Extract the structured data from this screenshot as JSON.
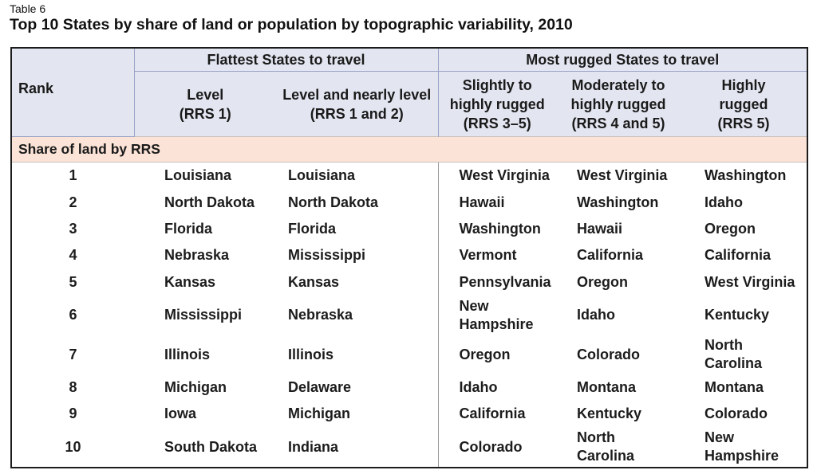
{
  "table_label": "Table 6",
  "title": "Top 10 States by share of land or population by topographic variability, 2010",
  "header": {
    "rank": "Rank",
    "flattest_group": "Flattest States to travel",
    "rugged_group": "Most rugged States to travel",
    "columns": [
      {
        "line1": "Level",
        "line2": "(RRS 1)",
        "line3": ""
      },
      {
        "line1": "Level and nearly level",
        "line2": "(RRS 1 and 2)",
        "line3": ""
      },
      {
        "line1": "Slightly to",
        "line2": "highly rugged",
        "line3": "(RRS 3–5)"
      },
      {
        "line1": "Moderately to",
        "line2": "highly rugged",
        "line3": "(RRS 4 and 5)"
      },
      {
        "line1": "Highly",
        "line2": "rugged",
        "line3": "(RRS 5)"
      }
    ]
  },
  "section": "Share of land by RRS",
  "rows": [
    {
      "rank": "1",
      "cells": [
        [
          "Louisiana"
        ],
        [
          "Louisiana"
        ],
        [
          "West Virginia"
        ],
        [
          "West Virginia"
        ],
        [
          "Washington"
        ]
      ]
    },
    {
      "rank": "2",
      "cells": [
        [
          "North Dakota"
        ],
        [
          "North Dakota"
        ],
        [
          "Hawaii"
        ],
        [
          "Washington"
        ],
        [
          "Idaho"
        ]
      ]
    },
    {
      "rank": "3",
      "cells": [
        [
          "Florida"
        ],
        [
          "Florida"
        ],
        [
          "Washington"
        ],
        [
          "Hawaii"
        ],
        [
          "Oregon"
        ]
      ]
    },
    {
      "rank": "4",
      "cells": [
        [
          "Nebraska"
        ],
        [
          "Mississippi"
        ],
        [
          "Vermont"
        ],
        [
          "California"
        ],
        [
          "California"
        ]
      ]
    },
    {
      "rank": "5",
      "cells": [
        [
          "Kansas"
        ],
        [
          "Kansas"
        ],
        [
          "Pennsylvania"
        ],
        [
          "Oregon"
        ],
        [
          "West Virginia"
        ]
      ]
    },
    {
      "rank": "6",
      "cells": [
        [
          "Mississippi"
        ],
        [
          "Nebraska"
        ],
        [
          "New",
          "Hampshire"
        ],
        [
          "Idaho"
        ],
        [
          "Kentucky"
        ]
      ]
    },
    {
      "rank": "7",
      "cells": [
        [
          "Illinois"
        ],
        [
          "Illinois"
        ],
        [
          "Oregon"
        ],
        [
          "Colorado"
        ],
        [
          "North",
          "Carolina"
        ]
      ]
    },
    {
      "rank": "8",
      "cells": [
        [
          "Michigan"
        ],
        [
          "Delaware"
        ],
        [
          "Idaho"
        ],
        [
          "Montana"
        ],
        [
          "Montana"
        ]
      ]
    },
    {
      "rank": "9",
      "cells": [
        [
          "Iowa"
        ],
        [
          "Michigan"
        ],
        [
          "California"
        ],
        [
          "Kentucky"
        ],
        [
          "Colorado"
        ]
      ]
    },
    {
      "rank": "10",
      "cells": [
        [
          "South Dakota"
        ],
        [
          "Indiana"
        ],
        [
          "Colorado"
        ],
        [
          "North",
          "Carolina"
        ],
        [
          "New",
          "Hampshire"
        ]
      ]
    }
  ]
}
